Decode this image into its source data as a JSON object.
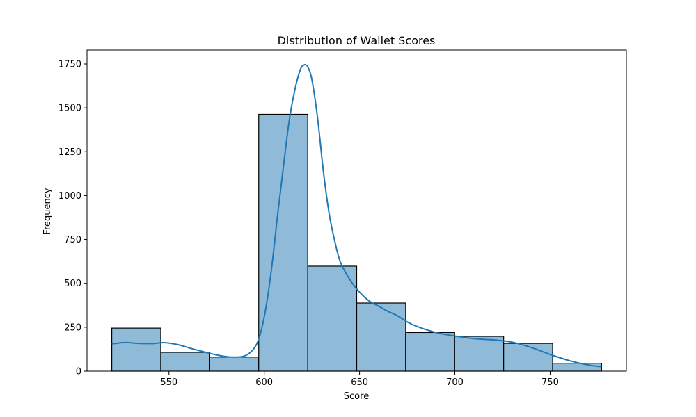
{
  "chart_data": {
    "type": "bar",
    "title": "Distribution of Wallet Scores",
    "xlabel": "Score",
    "ylabel": "Frequency",
    "xlim": [
      507,
      790
    ],
    "ylim": [
      0,
      1750
    ],
    "x_ticks": [
      550,
      600,
      650,
      700,
      750
    ],
    "y_ticks": [
      0,
      250,
      500,
      750,
      1000,
      1250,
      1500,
      1750
    ],
    "bin_edges": [
      520,
      545.7,
      571.4,
      597.1,
      622.8,
      648.5,
      674.2,
      699.9,
      725.6,
      751.3,
      777
    ],
    "values": [
      245,
      107,
      80,
      1463,
      598,
      388,
      220,
      198,
      158,
      45
    ],
    "kde": {
      "x": [
        520,
        527,
        534,
        541,
        548,
        555,
        562,
        569,
        576,
        583,
        590,
        595,
        598,
        601,
        604,
        607,
        610,
        613,
        616,
        619,
        621,
        622,
        623,
        625,
        628,
        631,
        634,
        637,
        640,
        645,
        650,
        655,
        660,
        665,
        670,
        675,
        680,
        690,
        700,
        710,
        720,
        730,
        740,
        750,
        760,
        770,
        777
      ],
      "y": [
        155,
        163,
        158,
        157,
        162,
        150,
        128,
        108,
        90,
        80,
        88,
        135,
        215,
        370,
        600,
        890,
        1160,
        1420,
        1600,
        1720,
        1745,
        1743,
        1730,
        1660,
        1440,
        1140,
        900,
        740,
        620,
        520,
        450,
        400,
        370,
        340,
        315,
        280,
        255,
        220,
        200,
        185,
        178,
        165,
        135,
        95,
        60,
        35,
        25
      ]
    },
    "colors": {
      "bar_fill": "#8fbbd9",
      "bar_edge": "#000000",
      "kde_line": "#1f77b4"
    },
    "grid": false,
    "legend": "none"
  }
}
